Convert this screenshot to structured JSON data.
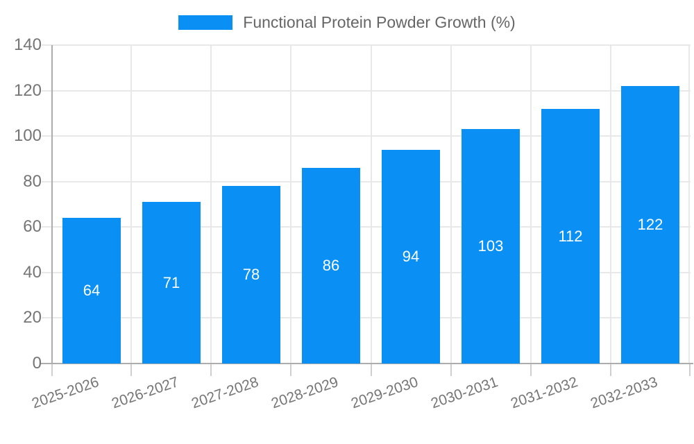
{
  "chart_data": {
    "type": "bar",
    "title": "Functional Protein Powder Growth (%)",
    "categories": [
      "2025-2026",
      "2026-2027",
      "2027-2028",
      "2028-2029",
      "2029-2030",
      "2030-2031",
      "2031-2032",
      "2032-2033"
    ],
    "values": [
      64,
      71,
      78,
      86,
      94,
      103,
      112,
      122
    ],
    "xlabel": "",
    "ylabel": "",
    "ylim": [
      0,
      140
    ],
    "yticks": [
      0,
      20,
      40,
      60,
      80,
      100,
      120,
      140
    ],
    "grid": true,
    "legend_position": "top",
    "x_tick_rotation_deg": -19,
    "value_labels_inside_bars": true,
    "colors": {
      "bar": "#0a90f5",
      "value_label": "#ffffff",
      "axis_text": "#757575",
      "legend_text": "#666666",
      "grid_line": "#e8e8e8",
      "axis_line": "#acacac",
      "tick_mark": "#cfcfcf",
      "background": "#ffffff"
    }
  }
}
